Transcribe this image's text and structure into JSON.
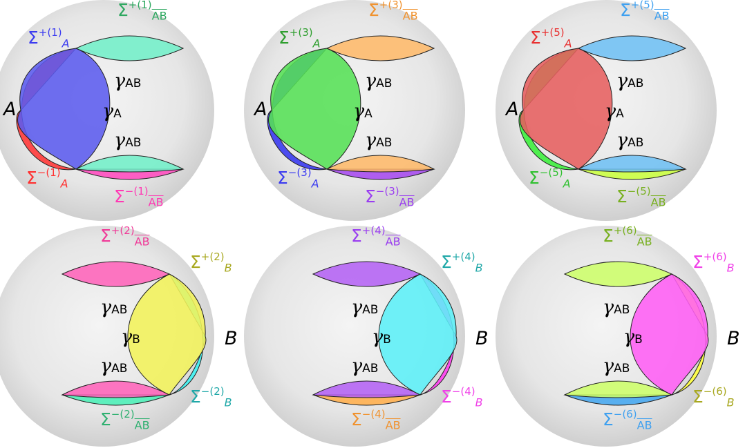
{
  "panels": [
    {
      "id": "1",
      "side": "A",
      "colors": {
        "region": "#5b5bee",
        "region_minus": "#ff3a3a",
        "ab_plus": "#6ff0c8",
        "ab_minus": "#ff4fc0"
      },
      "labels": {
        "region_letter": "A",
        "region_plus": {
          "sym": "Σ",
          "sup": "+(1)",
          "sub": "A",
          "color": "#3b3bf0"
        },
        "region_minus": {
          "sym": "Σ",
          "sup": "−(1)",
          "sub": "A",
          "color": "#ff3030"
        },
        "ab_plus": {
          "sym": "Σ",
          "sup": "+(1)",
          "sub": "AB",
          "color": "#2ea860"
        },
        "ab_minus": {
          "sym": "Σ",
          "sup": "−(1)",
          "sub": "AB",
          "color": "#ff3ab4"
        },
        "gamma_region": {
          "g": "γ",
          "s": "A"
        },
        "gamma_ab_top": {
          "g": "γ",
          "s": "AB"
        },
        "gamma_ab_bottom": {
          "g": "γ",
          "s": "AB"
        }
      }
    },
    {
      "id": "3",
      "side": "A",
      "colors": {
        "region": "#55e055",
        "region_minus": "#3b3bf0",
        "ab_plus": "#ffb866",
        "ab_minus": "#a84ef0"
      },
      "labels": {
        "region_letter": "A",
        "region_plus": {
          "sym": "Σ",
          "sup": "+(3)",
          "sub": "A",
          "color": "#2e9e2e"
        },
        "region_minus": {
          "sym": "Σ",
          "sup": "−(3)",
          "sub": "A",
          "color": "#3b3bf0"
        },
        "ab_plus": {
          "sym": "Σ",
          "sup": "+(3)",
          "sub": "AB",
          "color": "#f0922e"
        },
        "ab_minus": {
          "sym": "Σ",
          "sup": "−(3)",
          "sub": "AB",
          "color": "#9a3ef0"
        },
        "gamma_region": {
          "g": "γ",
          "s": "A"
        },
        "gamma_ab_top": {
          "g": "γ",
          "s": "AB"
        },
        "gamma_ab_bottom": {
          "g": "γ",
          "s": "AB"
        }
      }
    },
    {
      "id": "5",
      "side": "A",
      "colors": {
        "region": "#e65e5e",
        "region_minus": "#3ef03e",
        "ab_plus": "#6cc0f5",
        "ab_minus": "#ccff44"
      },
      "labels": {
        "region_letter": "A",
        "region_plus": {
          "sym": "Σ",
          "sup": "+(5)",
          "sub": "A",
          "color": "#e83030"
        },
        "region_minus": {
          "sym": "Σ",
          "sup": "−(5)",
          "sub": "A",
          "color": "#30c030"
        },
        "ab_plus": {
          "sym": "Σ",
          "sup": "+(5)",
          "sub": "AB",
          "color": "#3ea0f0"
        },
        "ab_minus": {
          "sym": "Σ",
          "sup": "−(5)",
          "sub": "AB",
          "color": "#78b020"
        },
        "gamma_region": {
          "g": "γ",
          "s": "A"
        },
        "gamma_ab_top": {
          "g": "γ",
          "s": "AB"
        },
        "gamma_ab_bottom": {
          "g": "γ",
          "s": "AB"
        }
      }
    },
    {
      "id": "2",
      "side": "B",
      "colors": {
        "region": "#f2f25a",
        "region_minus": "#3ff2f2",
        "ab_plus": "#ff5fb8",
        "ab_minus": "#4ff0b8"
      },
      "labels": {
        "region_letter": "B",
        "region_plus": {
          "sym": "Σ",
          "sup": "+(2)",
          "sub": "B",
          "color": "#a8a820"
        },
        "region_minus": {
          "sym": "Σ",
          "sup": "−(2)",
          "sub": "B",
          "color": "#20a8a8"
        },
        "ab_plus": {
          "sym": "Σ",
          "sup": "+(2)",
          "sub": "AB",
          "color": "#f03a98"
        },
        "ab_minus": {
          "sym": "Σ",
          "sup": "−(2)",
          "sub": "AB",
          "color": "#2eb070"
        },
        "gamma_region": {
          "g": "γ",
          "s": "B"
        },
        "gamma_ab_top": {
          "g": "γ",
          "s": "AB"
        },
        "gamma_ab_bottom": {
          "g": "γ",
          "s": "AB"
        }
      }
    },
    {
      "id": "4",
      "side": "B",
      "colors": {
        "region": "#5cf0f8",
        "region_minus": "#ff3ef0",
        "ab_plus": "#b35ef5",
        "ab_minus": "#ffb050"
      },
      "labels": {
        "region_letter": "B",
        "region_plus": {
          "sym": "Σ",
          "sup": "+(4)",
          "sub": "B",
          "color": "#20a8a8"
        },
        "region_minus": {
          "sym": "Σ",
          "sup": "−(4)",
          "sub": "B",
          "color": "#f040e8"
        },
        "ab_plus": {
          "sym": "Σ",
          "sup": "+(4)",
          "sub": "AB",
          "color": "#9a3ef0"
        },
        "ab_minus": {
          "sym": "Σ",
          "sup": "−(4)",
          "sub": "AB",
          "color": "#f0922e"
        },
        "gamma_region": {
          "g": "γ",
          "s": "B"
        },
        "gamma_ab_top": {
          "g": "γ",
          "s": "AB"
        },
        "gamma_ab_bottom": {
          "g": "γ",
          "s": "AB"
        }
      }
    },
    {
      "id": "6",
      "side": "B",
      "colors": {
        "region": "#ff5ef5",
        "region_minus": "#ffff3e",
        "ab_plus": "#ccff66",
        "ab_minus": "#48a8f0"
      },
      "labels": {
        "region_letter": "B",
        "region_plus": {
          "sym": "Σ",
          "sup": "+(6)",
          "sub": "B",
          "color": "#f040e8"
        },
        "region_minus": {
          "sym": "Σ",
          "sup": "−(6)",
          "sub": "B",
          "color": "#a8a820"
        },
        "ab_plus": {
          "sym": "Σ",
          "sup": "+(6)",
          "sub": "AB",
          "color": "#78b020"
        },
        "ab_minus": {
          "sym": "Σ",
          "sup": "−(6)",
          "sub": "AB",
          "color": "#3ea0f0"
        },
        "gamma_region": {
          "g": "γ",
          "s": "B"
        },
        "gamma_ab_top": {
          "g": "γ",
          "s": "AB"
        },
        "gamma_ab_bottom": {
          "g": "γ",
          "s": "AB"
        }
      }
    }
  ]
}
